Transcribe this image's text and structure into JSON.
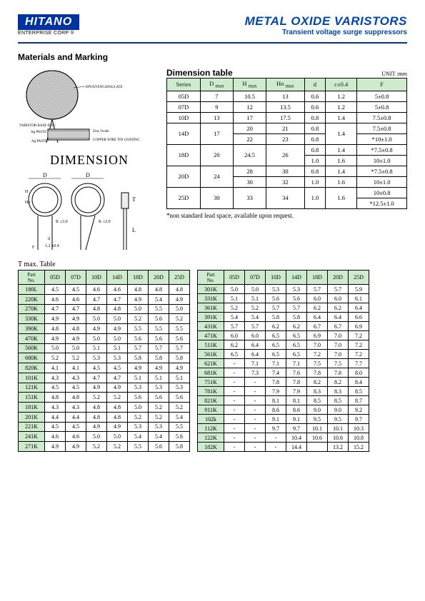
{
  "header": {
    "logo_text": "HITANO",
    "logo_sub": "ENTERPRISE CORP ®",
    "title": "METAL OXIDE VARISTORS",
    "subtitle": "Transient voltage surge suppressors"
  },
  "section_title": "Materials and Marking",
  "dimension_word": "DIMENSION",
  "dim": {
    "title": "Dimension table",
    "unit": "UNIT :mm",
    "cols": [
      "Series",
      "D max",
      "H max",
      "Ho max",
      "d",
      "c±0.4",
      "F"
    ],
    "rows": [
      [
        "05D",
        "7",
        "10.5",
        "13",
        "0.6",
        "1.2",
        "5±0.8",
        1,
        1,
        1,
        1,
        1,
        1,
        1
      ],
      [
        "07D",
        "9",
        "12",
        "13.5",
        "0.6",
        "1.2",
        "5±0.8",
        1,
        1,
        1,
        1,
        1,
        1,
        1
      ],
      [
        "10D",
        "13",
        "17",
        "17.5",
        "0.8",
        "1.4",
        "7.5±0.8",
        1,
        1,
        1,
        1,
        1,
        1,
        1
      ],
      [
        "14D",
        "17",
        "20",
        "21",
        "0.8",
        "1.4",
        "7.5±0.8",
        2,
        2,
        1,
        1,
        1,
        2,
        1
      ],
      [
        "",
        "",
        "22",
        "23",
        "0.8",
        "",
        "*10±1.0",
        0,
        0,
        1,
        1,
        1,
        0,
        1
      ],
      [
        "18D",
        "20",
        "24.5",
        "26",
        "0.8",
        "1.4",
        "*7.5±0.8",
        2,
        2,
        2,
        2,
        1,
        1,
        1
      ],
      [
        "",
        "",
        "",
        "",
        "1.0",
        "1.6",
        "10±1.0",
        0,
        0,
        0,
        0,
        1,
        1,
        1
      ],
      [
        "20D",
        "24",
        "28",
        "30",
        "0.8",
        "1.4",
        "*7.5±0.8",
        2,
        2,
        1,
        1,
        1,
        1,
        1
      ],
      [
        "",
        "",
        "30",
        "32",
        "1.0",
        "1.6",
        "10±1.0",
        0,
        0,
        1,
        1,
        1,
        1,
        1
      ],
      [
        "25D",
        "30",
        "33",
        "34",
        "1.0",
        "1.6",
        "10±0.8",
        2,
        2,
        2,
        2,
        2,
        2,
        1
      ],
      [
        "",
        "",
        "",
        "",
        "",
        "",
        "*12.5±1.0",
        0,
        0,
        0,
        0,
        0,
        0,
        1
      ]
    ],
    "note": "*non standard lead space, available upon request."
  },
  "tmax": {
    "label": "T max. Table",
    "cols": [
      "Part No.",
      "05D",
      "07D",
      "10D",
      "14D",
      "18D",
      "20D",
      "25D"
    ],
    "left": [
      [
        "180L",
        "4.5",
        "4.5",
        "4.6",
        "4.6",
        "4.8",
        "4.8",
        "4.8"
      ],
      [
        "220K",
        "4.6",
        "4.6",
        "4.7",
        "4.7",
        "4.9",
        "5.4",
        "4.9"
      ],
      [
        "270K",
        "4.7",
        "4.7",
        "4.8",
        "4.8",
        "5.0",
        "5.5",
        "5.0"
      ],
      [
        "330K",
        "4.9",
        "4.9",
        "5.0",
        "5.0",
        "5.2",
        "5.6",
        "5.2"
      ],
      [
        "390K",
        "4.8",
        "4.8",
        "4.9",
        "4.9",
        "5.5",
        "5.5",
        "5.5"
      ],
      [
        "470K",
        "4.9",
        "4.9",
        "5.0",
        "5.0",
        "5.6",
        "5.6",
        "5.6"
      ],
      [
        "560K",
        "5.0",
        "5.0",
        "5.1",
        "5.1",
        "5.7",
        "5.7",
        "5.7"
      ],
      [
        "680K",
        "5.2",
        "5.2",
        "5.3",
        "5.3",
        "5.8",
        "5.8",
        "5.8"
      ],
      [
        "820K",
        "4.1",
        "4.1",
        "4.5",
        "4.5",
        "4.9",
        "4.9",
        "4.9"
      ],
      [
        "101K",
        "4.3",
        "4.3",
        "4.7",
        "4.7",
        "5.1",
        "5.1",
        "5.1"
      ],
      [
        "121K",
        "4.5",
        "4.5",
        "4.9",
        "4.9",
        "5.3",
        "5.3",
        "5.3"
      ],
      [
        "151K",
        "4.8",
        "4.8",
        "5.2",
        "5.2",
        "5.6",
        "5.6",
        "5.6"
      ],
      [
        "181K",
        "4.3",
        "4.3",
        "4.8",
        "4.8",
        "5.0",
        "5.2",
        "5.2"
      ],
      [
        "201K",
        "4.4",
        "4.4",
        "4.8",
        "4.8",
        "5.2",
        "5.2",
        "5.4"
      ],
      [
        "221K",
        "4.5",
        "4.5",
        "4.9",
        "4.9",
        "5.3",
        "5.3",
        "5.5"
      ],
      [
        "241K",
        "4.6",
        "4.6",
        "5.0",
        "5.0",
        "5.4",
        "5.4",
        "5.6"
      ],
      [
        "271K",
        "4.9",
        "4.9",
        "5.2",
        "5.2",
        "5.5",
        "5.6",
        "5.8"
      ]
    ],
    "right": [
      [
        "301K",
        "5.0",
        "5.0",
        "5.3",
        "5.3",
        "5.7",
        "5.7",
        "5.9"
      ],
      [
        "331K",
        "5.1",
        "5.1",
        "5.6",
        "5.6",
        "6.0",
        "6.0",
        "6.1"
      ],
      [
        "361K",
        "5.2",
        "5.2",
        "5.7",
        "5.7",
        "6.2",
        "6.2",
        "6.4"
      ],
      [
        "391K",
        "5.4",
        "5.4",
        "5.8",
        "5.8",
        "6.4",
        "6.4",
        "6.6"
      ],
      [
        "431K",
        "5.7",
        "5.7",
        "6.2",
        "6.2",
        "6.7",
        "6.7",
        "6.9"
      ],
      [
        "471K",
        "6.0",
        "6.0",
        "6.5",
        "6.5",
        "6.9",
        "7.0",
        "7.2"
      ],
      [
        "511K",
        "6.2",
        "6.4",
        "6.5",
        "6.5",
        "7.0",
        "7.0",
        "7.2"
      ],
      [
        "561K",
        "6.5",
        "6.4",
        "6.5",
        "6.5",
        "7.2",
        "7.0",
        "7.2"
      ],
      [
        "621K",
        "-",
        "7.1",
        "7.1",
        "7.1",
        "7.5",
        "7.5",
        "7.7"
      ],
      [
        "681K",
        "-",
        "7.3",
        "7.4",
        "7.6",
        "7.8",
        "7.8",
        "8.0"
      ],
      [
        "751K",
        "-",
        "-",
        "7.8",
        "7.8",
        "8.2",
        "8.2",
        "8.4"
      ],
      [
        "781K",
        "-",
        "-",
        "7.9",
        "7.9",
        "8.3",
        "8.3",
        "8.5"
      ],
      [
        "821K",
        "-",
        "-",
        "8.1",
        "8.1",
        "8.5",
        "8.5",
        "8.7"
      ],
      [
        "911K",
        "-",
        "-",
        "8.6",
        "8.6",
        "9.0",
        "9.0",
        "9.2"
      ],
      [
        "102k",
        "-",
        "-",
        "9.1",
        "9.1",
        "9.5",
        "9.5",
        "9.7"
      ],
      [
        "112K",
        "-",
        "-",
        "9.7",
        "9.7",
        "10.1",
        "10.1",
        "10.3"
      ],
      [
        "122K",
        "-",
        "-",
        "-",
        "10.4",
        "10.6",
        "10.6",
        "10.8"
      ],
      [
        "182K",
        "-",
        "-",
        "-",
        "14.4",
        "",
        "13.2",
        "15.2"
      ]
    ]
  },
  "diagram_labels": {
    "a": "EPOXYENCAPSULATE",
    "b": "VARISTOR BASE DISC",
    "c": "Ag PASTE",
    "d": "Zinc Oxide",
    "e": "COPPER WIRE TIN COATING",
    "f": "Ag PASTE"
  }
}
